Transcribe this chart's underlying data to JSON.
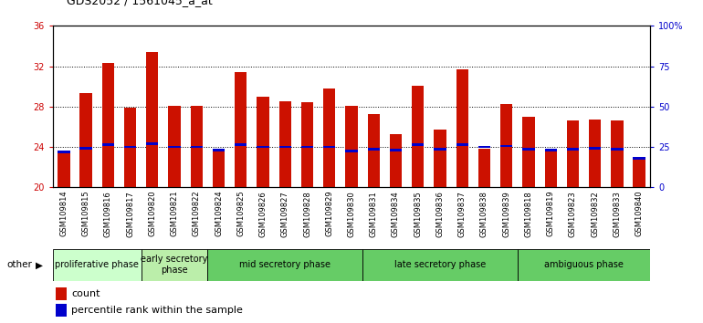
{
  "title": "GDS2052 / 1561045_a_at",
  "samples": [
    "GSM109814",
    "GSM109815",
    "GSM109816",
    "GSM109817",
    "GSM109820",
    "GSM109821",
    "GSM109822",
    "GSM109824",
    "GSM109825",
    "GSM109826",
    "GSM109827",
    "GSM109828",
    "GSM109829",
    "GSM109830",
    "GSM109831",
    "GSM109834",
    "GSM109835",
    "GSM109836",
    "GSM109837",
    "GSM109838",
    "GSM109839",
    "GSM109818",
    "GSM109819",
    "GSM109823",
    "GSM109832",
    "GSM109833",
    "GSM109840"
  ],
  "count_values": [
    23.4,
    29.3,
    32.3,
    27.9,
    33.4,
    28.1,
    28.1,
    23.8,
    31.4,
    29.0,
    28.5,
    28.4,
    29.8,
    28.1,
    27.3,
    25.3,
    30.1,
    25.7,
    31.7,
    23.8,
    28.3,
    27.0,
    23.8,
    26.6,
    26.7,
    26.6,
    22.7
  ],
  "percentile_values": [
    23.5,
    23.9,
    24.2,
    24.0,
    24.3,
    24.0,
    24.0,
    23.7,
    24.2,
    24.0,
    24.0,
    24.0,
    24.0,
    23.6,
    23.8,
    23.7,
    24.2,
    23.8,
    24.2,
    24.0,
    24.1,
    23.8,
    23.7,
    23.8,
    23.9,
    23.8,
    22.9
  ],
  "count_color": "#cc1100",
  "percentile_color": "#0000cc",
  "bar_width": 0.55,
  "ylim_left": [
    20,
    36
  ],
  "yticks_left": [
    20,
    24,
    28,
    32,
    36
  ],
  "ylim_right": [
    0,
    100
  ],
  "yticks_right": [
    0,
    25,
    50,
    75,
    100
  ],
  "phases_def": [
    {
      "label": "proliferative phase",
      "start": 0,
      "end": 4,
      "color": "#ccffcc"
    },
    {
      "label": "early secretory\nphase",
      "start": 4,
      "end": 7,
      "color": "#bbeeaa"
    },
    {
      "label": "mid secretory phase",
      "start": 7,
      "end": 14,
      "color": "#66cc66"
    },
    {
      "label": "late secretory phase",
      "start": 14,
      "end": 21,
      "color": "#66cc66"
    },
    {
      "label": "ambiguous phase",
      "start": 21,
      "end": 27,
      "color": "#66cc66"
    }
  ],
  "other_label": "other",
  "legend_count": "count",
  "legend_percentile": "percentile rank within the sample",
  "right_axis_color": "#0000cc",
  "left_axis_color": "#cc0000",
  "title_fontsize": 9,
  "tick_fontsize": 7,
  "phase_fontsize": 7
}
